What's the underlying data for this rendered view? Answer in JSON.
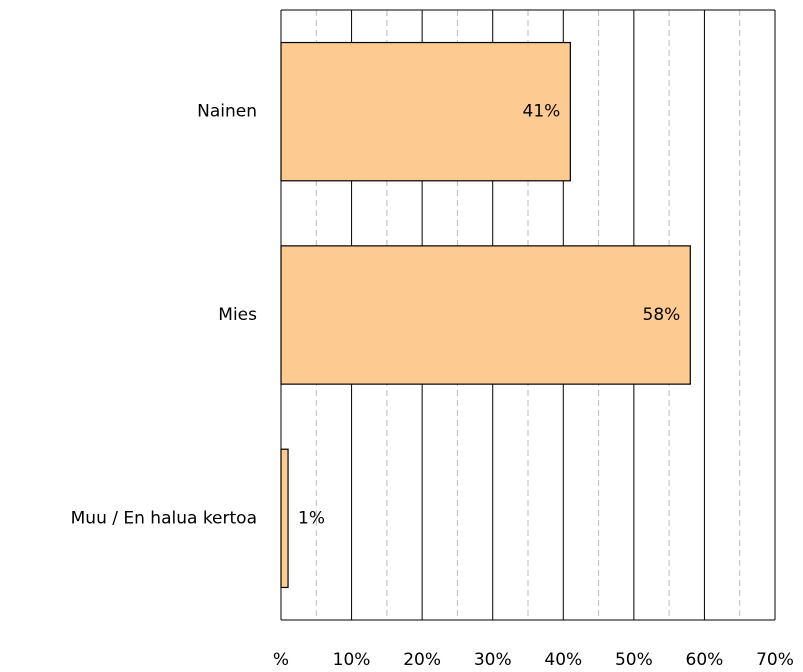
{
  "chart_data": {
    "type": "bar",
    "orientation": "horizontal",
    "categories": [
      "Nainen",
      "Mies",
      "Muu / En halua kertoa"
    ],
    "values": [
      41,
      58,
      1
    ],
    "value_labels": [
      "41%",
      "58%",
      "1%"
    ],
    "color": "#fdcb91",
    "xlim": [
      0,
      70
    ],
    "xticks": [
      {
        "value": 0,
        "label": "%"
      },
      {
        "value": 10,
        "label": "10%"
      },
      {
        "value": 20,
        "label": "20%"
      },
      {
        "value": 30,
        "label": "30%"
      },
      {
        "value": 40,
        "label": "40%"
      },
      {
        "value": 50,
        "label": "50%"
      },
      {
        "value": 60,
        "label": "60%"
      },
      {
        "value": 70,
        "label": "70%"
      }
    ],
    "minor_xticks": [
      5,
      15,
      25,
      35,
      45,
      55,
      65
    ],
    "grid": true
  }
}
